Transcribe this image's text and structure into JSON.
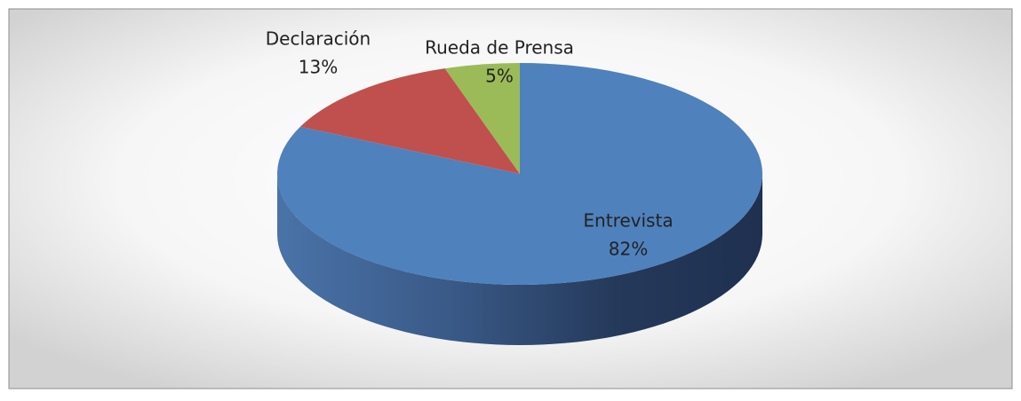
{
  "chart_data": {
    "type": "pie",
    "categories": [
      "Entrevista",
      "Declaración",
      "Rueda de Prensa"
    ],
    "values": [
      82,
      13,
      5
    ],
    "value_labels": [
      "82%",
      "13%",
      "5%"
    ],
    "colors": [
      "#4f81bd",
      "#c0504d",
      "#9bbb59"
    ]
  }
}
